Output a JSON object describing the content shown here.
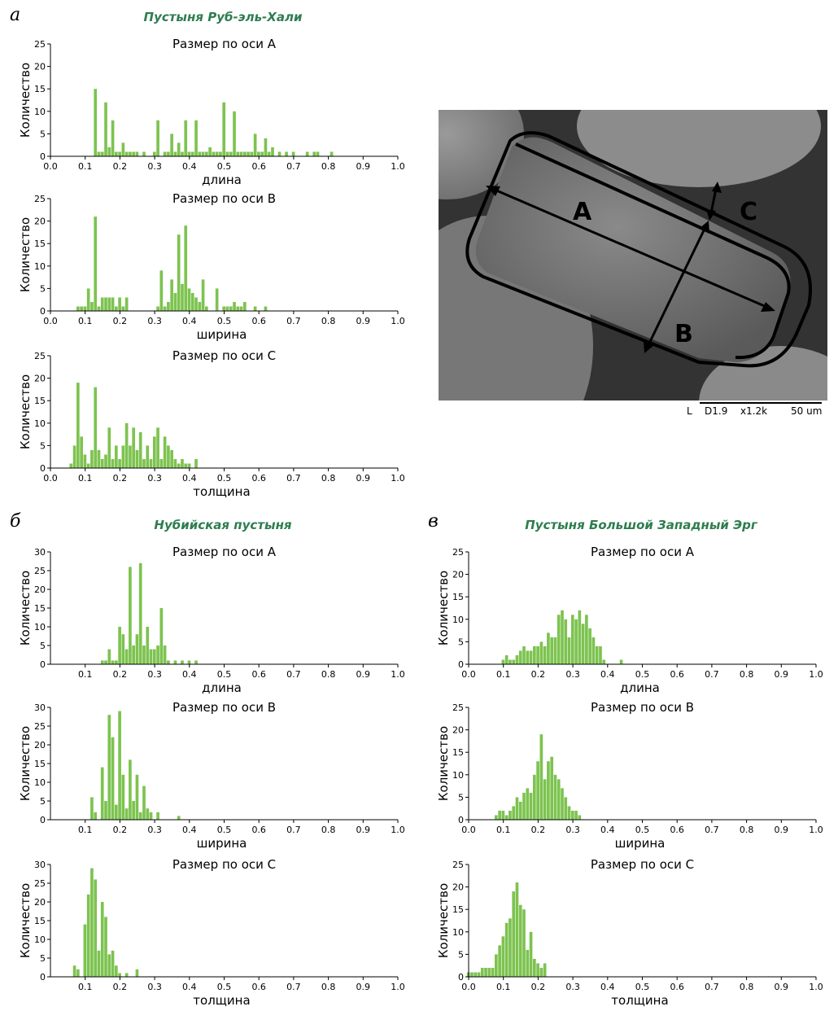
{
  "panels": [
    {
      "letter": "а",
      "title": "Пустыня Руб-эль-Хали",
      "ylabel": "Количество",
      "charts": [
        {
          "subtitle": "Размер по оси A",
          "xlabel": "длина",
          "ymax": 25,
          "yticks": [
            0,
            5,
            10,
            15,
            20,
            25
          ],
          "xticks": [
            "0.0",
            "0.1",
            "0.2",
            "0.3",
            "0.4",
            "0.5",
            "0.6",
            "0.7",
            "0.8",
            "0.9",
            "1.0"
          ]
        },
        {
          "subtitle": "Размер по оси B",
          "xlabel": "ширина",
          "ymax": 25,
          "yticks": [
            0,
            5,
            10,
            15,
            20,
            25
          ],
          "xticks": [
            "0.0",
            "0.1",
            "0.2",
            "0.3",
            "0.4",
            "0.5",
            "0.6",
            "0.7",
            "0.8",
            "0.9",
            "1.0"
          ]
        },
        {
          "subtitle": "Размер по оси C",
          "xlabel": "толщина",
          "ymax": 25,
          "yticks": [
            0,
            5,
            10,
            15,
            20,
            25
          ],
          "xticks": [
            "0.0",
            "0.1",
            "0.2",
            "0.3",
            "0.4",
            "0.5",
            "0.6",
            "0.7",
            "0.8",
            "0.9",
            "1.0"
          ]
        }
      ]
    },
    {
      "letter": "б",
      "title": "Нубийская пустыня",
      "ylabel": "Количество",
      "charts": [
        {
          "subtitle": "Размер по оси A",
          "xlabel": "длина",
          "ymax": 30,
          "yticks": [
            0,
            5,
            10,
            15,
            20,
            25,
            30
          ],
          "xticks": [
            "0.1",
            "0.2",
            "0.3",
            "0.4",
            "0.5",
            "0.6",
            "0.7",
            "0.8",
            "0.9",
            "1.0"
          ]
        },
        {
          "subtitle": "Размер по оси B",
          "xlabel": "ширина",
          "ymax": 30,
          "yticks": [
            0,
            5,
            10,
            15,
            20,
            25,
            30
          ],
          "xticks": [
            "0.1",
            "0.2",
            "0.3",
            "0.4",
            "0.5",
            "0.6",
            "0.7",
            "0.8",
            "0.9",
            "1.0"
          ]
        },
        {
          "subtitle": "Размер по оси C",
          "xlabel": "толщина",
          "ymax": 30,
          "yticks": [
            0,
            5,
            10,
            15,
            20,
            25,
            30
          ],
          "xticks": [
            "0.1",
            "0.2",
            "0.3",
            "0.4",
            "0.5",
            "0.6",
            "0.7",
            "0.8",
            "0.9",
            "1.0"
          ]
        }
      ]
    },
    {
      "letter": "в",
      "title": "Пустыня Большой Западный Эрг",
      "ylabel": "Количество",
      "charts": [
        {
          "subtitle": "Размер по оси A",
          "xlabel": "длина",
          "ymax": 25,
          "yticks": [
            0,
            5,
            10,
            15,
            20,
            25
          ],
          "xticks": [
            "0.0",
            "0.1",
            "0.2",
            "0.3",
            "0.4",
            "0.5",
            "0.6",
            "0.7",
            "0.8",
            "0.9",
            "1.0"
          ]
        },
        {
          "subtitle": "Размер по оси B",
          "xlabel": "ширина",
          "ymax": 25,
          "yticks": [
            0,
            5,
            10,
            15,
            20,
            25
          ],
          "xticks": [
            "0.0",
            "0.1",
            "0.2",
            "0.3",
            "0.4",
            "0.5",
            "0.6",
            "0.7",
            "0.8",
            "0.9",
            "1.0"
          ]
        },
        {
          "subtitle": "Размер по оси C",
          "xlabel": "толщина",
          "ymax": 25,
          "yticks": [
            0,
            5,
            10,
            15,
            20,
            25
          ],
          "xticks": [
            "0.0",
            "0.1",
            "0.2",
            "0.3",
            "0.4",
            "0.5",
            "0.6",
            "0.7",
            "0.8",
            "0.9",
            "1.0"
          ]
        }
      ]
    }
  ],
  "sem_image": {
    "labels": [
      "A",
      "B",
      "C"
    ],
    "caption": [
      "L",
      "D1.9",
      "x1.2k",
      "50 um"
    ]
  },
  "colors": {
    "bar": "#7dc350",
    "title": "#2e7d4f"
  },
  "chart_data": [
    {
      "type": "bar",
      "panel": "а",
      "title": "Размер по оси A",
      "xlabel": "длина",
      "ylabel": "Количество",
      "xlim": [
        0,
        1
      ],
      "ylim": [
        0,
        25
      ],
      "bin_width": 0.01,
      "x": [
        0.13,
        0.14,
        0.15,
        0.16,
        0.17,
        0.18,
        0.19,
        0.2,
        0.21,
        0.22,
        0.23,
        0.24,
        0.25,
        0.27,
        0.3,
        0.31,
        0.33,
        0.34,
        0.35,
        0.36,
        0.37,
        0.38,
        0.39,
        0.4,
        0.41,
        0.42,
        0.43,
        0.44,
        0.45,
        0.46,
        0.47,
        0.48,
        0.49,
        0.5,
        0.51,
        0.52,
        0.53,
        0.54,
        0.55,
        0.56,
        0.57,
        0.58,
        0.59,
        0.6,
        0.61,
        0.62,
        0.63,
        0.64,
        0.66,
        0.68,
        0.7,
        0.74,
        0.76,
        0.77,
        0.81
      ],
      "y": [
        15,
        1,
        1,
        12,
        2,
        8,
        1,
        1,
        3,
        1,
        1,
        1,
        1,
        1,
        1,
        8,
        1,
        1,
        5,
        1,
        3,
        1,
        8,
        1,
        1,
        8,
        1,
        1,
        1,
        2,
        1,
        1,
        1,
        12,
        1,
        1,
        10,
        1,
        1,
        1,
        1,
        1,
        5,
        1,
        1,
        4,
        1,
        2,
        1,
        1,
        1,
        1,
        1,
        1,
        1
      ]
    },
    {
      "type": "bar",
      "panel": "а",
      "title": "Размер по оси B",
      "xlabel": "ширина",
      "ylabel": "Количество",
      "xlim": [
        0,
        1
      ],
      "ylim": [
        0,
        25
      ],
      "bin_width": 0.01,
      "x": [
        0.08,
        0.09,
        0.1,
        0.11,
        0.12,
        0.13,
        0.14,
        0.15,
        0.16,
        0.17,
        0.18,
        0.19,
        0.2,
        0.21,
        0.22,
        0.31,
        0.32,
        0.33,
        0.34,
        0.35,
        0.36,
        0.37,
        0.38,
        0.39,
        0.4,
        0.41,
        0.42,
        0.43,
        0.44,
        0.45,
        0.48,
        0.5,
        0.51,
        0.52,
        0.53,
        0.54,
        0.55,
        0.56,
        0.59,
        0.62
      ],
      "y": [
        1,
        1,
        1,
        5,
        2,
        21,
        1,
        3,
        3,
        3,
        3,
        1,
        3,
        1,
        3,
        1,
        9,
        1,
        2,
        7,
        4,
        17,
        6,
        19,
        5,
        4,
        3,
        2,
        7,
        1,
        5,
        1,
        1,
        1,
        2,
        1,
        1,
        2,
        1,
        1
      ]
    },
    {
      "type": "bar",
      "panel": "а",
      "title": "Размер по оси C",
      "xlabel": "толщина",
      "ylabel": "Количество",
      "xlim": [
        0,
        1
      ],
      "ylim": [
        0,
        25
      ],
      "bin_width": 0.01,
      "x": [
        0.06,
        0.07,
        0.08,
        0.09,
        0.1,
        0.11,
        0.12,
        0.13,
        0.14,
        0.15,
        0.16,
        0.17,
        0.18,
        0.19,
        0.2,
        0.21,
        0.22,
        0.23,
        0.24,
        0.25,
        0.26,
        0.27,
        0.28,
        0.29,
        0.3,
        0.31,
        0.32,
        0.33,
        0.34,
        0.35,
        0.36,
        0.37,
        0.38,
        0.39,
        0.4,
        0.42
      ],
      "y": [
        1,
        5,
        19,
        7,
        3,
        1,
        4,
        18,
        4,
        2,
        3,
        9,
        2,
        5,
        2,
        5,
        10,
        5,
        9,
        4,
        8,
        2,
        5,
        2,
        7,
        9,
        2,
        7,
        5,
        4,
        2,
        1,
        2,
        1,
        1,
        2
      ]
    },
    {
      "type": "bar",
      "panel": "б",
      "title": "Размер по оси A",
      "xlabel": "длина",
      "ylabel": "Количество",
      "xlim": [
        0,
        1
      ],
      "ylim": [
        0,
        30
      ],
      "bin_width": 0.01,
      "x": [
        0.15,
        0.16,
        0.17,
        0.18,
        0.19,
        0.2,
        0.21,
        0.22,
        0.23,
        0.24,
        0.25,
        0.26,
        0.27,
        0.28,
        0.29,
        0.3,
        0.31,
        0.32,
        0.33,
        0.34,
        0.36,
        0.38,
        0.4,
        0.42
      ],
      "y": [
        1,
        1,
        4,
        1,
        1,
        10,
        8,
        4,
        26,
        5,
        8,
        27,
        5,
        10,
        4,
        4,
        5,
        15,
        5,
        1,
        1,
        1,
        1,
        1
      ],
      "_note": "omit"
    },
    {
      "type": "bar",
      "panel": "б",
      "title": "Размер по оси B",
      "xlabel": "ширина",
      "ylabel": "Количество",
      "xlim": [
        0,
        1
      ],
      "ylim": [
        0,
        30
      ],
      "bin_width": 0.01,
      "x": [
        0.12,
        0.13,
        0.15,
        0.16,
        0.17,
        0.18,
        0.19,
        0.2,
        0.21,
        0.22,
        0.23,
        0.24,
        0.25,
        0.26,
        0.27,
        0.28,
        0.29,
        0.31,
        0.37
      ],
      "y": [
        6,
        2,
        14,
        5,
        28,
        22,
        4,
        29,
        12,
        3,
        16,
        5,
        12,
        2,
        9,
        3,
        2,
        2,
        1
      ]
    },
    {
      "type": "bar",
      "panel": "б",
      "title": "Размер по оси C",
      "xlabel": "толщина",
      "ylabel": "Количество",
      "xlim": [
        0,
        1
      ],
      "ylim": [
        0,
        30
      ],
      "bin_width": 0.01,
      "x": [
        0.07,
        0.08,
        0.1,
        0.11,
        0.12,
        0.13,
        0.14,
        0.15,
        0.16,
        0.17,
        0.18,
        0.19,
        0.2,
        0.22,
        0.25
      ],
      "y": [
        3,
        2,
        14,
        22,
        29,
        26,
        7,
        20,
        16,
        6,
        7,
        3,
        1,
        1,
        2
      ]
    },
    {
      "type": "bar",
      "panel": "в",
      "title": "Размер по оси A",
      "xlabel": "длина",
      "ylabel": "Количество",
      "xlim": [
        0,
        1
      ],
      "ylim": [
        0,
        25
      ],
      "bin_width": 0.01,
      "x": [
        0.1,
        0.11,
        0.12,
        0.13,
        0.14,
        0.15,
        0.16,
        0.17,
        0.18,
        0.19,
        0.2,
        0.21,
        0.22,
        0.23,
        0.24,
        0.25,
        0.26,
        0.27,
        0.28,
        0.29,
        0.3,
        0.31,
        0.32,
        0.33,
        0.34,
        0.35,
        0.36,
        0.37,
        0.38,
        0.39,
        0.44
      ],
      "y": [
        1,
        2,
        1,
        1,
        2,
        3,
        4,
        3,
        3,
        4,
        4,
        5,
        4,
        7,
        6,
        6,
        11,
        12,
        10,
        6,
        11,
        10,
        12,
        9,
        11,
        8,
        6,
        4,
        4,
        1,
        1
      ]
    },
    {
      "type": "bar",
      "panel": "в",
      "title": "Размер по оси B",
      "xlabel": "ширина",
      "ylabel": "Количество",
      "xlim": [
        0,
        1
      ],
      "ylim": [
        0,
        25
      ],
      "bin_width": 0.01,
      "x": [
        0.08,
        0.09,
        0.1,
        0.11,
        0.12,
        0.13,
        0.14,
        0.15,
        0.16,
        0.17,
        0.18,
        0.19,
        0.2,
        0.21,
        0.22,
        0.23,
        0.24,
        0.25,
        0.26,
        0.27,
        0.28,
        0.29,
        0.3,
        0.31,
        0.32
      ],
      "y": [
        1,
        2,
        2,
        1,
        2,
        3,
        5,
        4,
        6,
        7,
        6,
        10,
        13,
        19,
        9,
        13,
        14,
        10,
        9,
        7,
        5,
        3,
        2,
        2,
        1
      ]
    },
    {
      "type": "bar",
      "panel": "в",
      "title": "Размер по оси C",
      "xlabel": "толщина",
      "ylabel": "Количество",
      "xlim": [
        0,
        1
      ],
      "ylim": [
        0,
        25
      ],
      "bin_width": 0.01,
      "x": [
        0.0,
        0.01,
        0.02,
        0.03,
        0.04,
        0.05,
        0.06,
        0.07,
        0.08,
        0.09,
        0.1,
        0.11,
        0.12,
        0.13,
        0.14,
        0.15,
        0.16,
        0.17,
        0.18,
        0.19,
        0.2,
        0.21,
        0.22
      ],
      "y": [
        1,
        1,
        1,
        1,
        2,
        2,
        2,
        2,
        5,
        7,
        9,
        12,
        13,
        19,
        21,
        16,
        15,
        6,
        10,
        4,
        3,
        2,
        3
      ]
    }
  ]
}
